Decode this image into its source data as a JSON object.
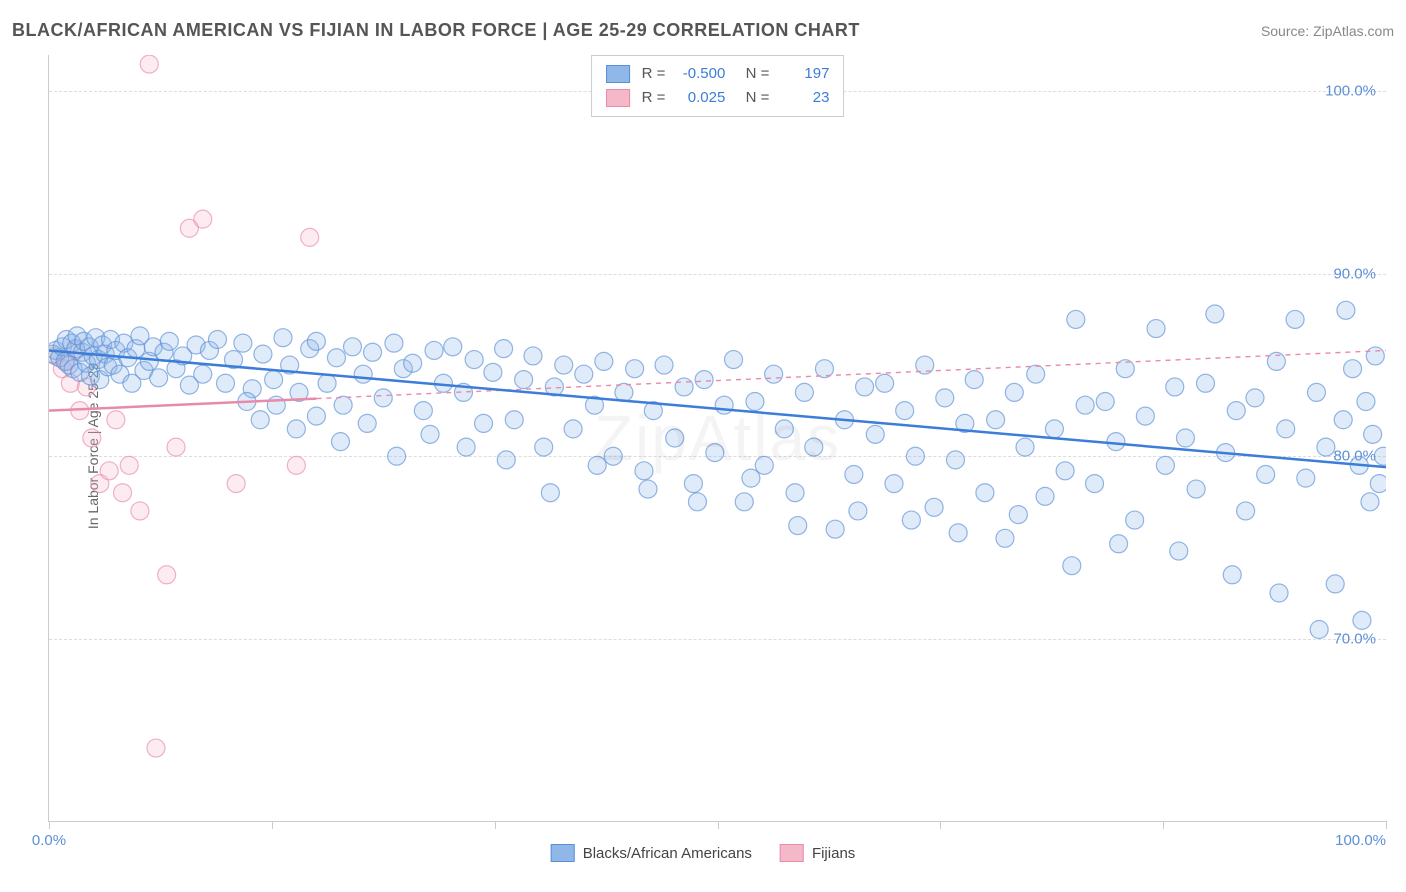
{
  "title": "BLACK/AFRICAN AMERICAN VS FIJIAN IN LABOR FORCE | AGE 25-29 CORRELATION CHART",
  "source": "Source: ZipAtlas.com",
  "watermark": "ZipAtlas",
  "ylabel": "In Labor Force | Age 25-29",
  "chart": {
    "type": "scatter",
    "xlim": [
      0,
      100
    ],
    "ylim": [
      60,
      102
    ],
    "yticks": [
      70,
      80,
      90,
      100
    ],
    "ytick_labels": [
      "70.0%",
      "80.0%",
      "90.0%",
      "100.0%"
    ],
    "xticks": [
      0,
      16.67,
      33.33,
      50,
      66.67,
      83.33,
      100
    ],
    "xtick_labels_shown": {
      "0": "0.0%",
      "100": "100.0%"
    },
    "background_color": "#ffffff",
    "grid_color": "#dddddd",
    "marker_radius": 9,
    "marker_fill_opacity": 0.28,
    "marker_stroke_opacity": 0.65,
    "marker_stroke_width": 1.2,
    "trend_line_width_solid": 2.5,
    "trend_line_width_dash": 1.4,
    "dash_pattern": "5,5"
  },
  "series": {
    "blue": {
      "label": "Blacks/African Americans",
      "color": "#8fb8e8",
      "stroke": "#5b8fd6",
      "line_color": "#3b7dd8",
      "R": "-0.500",
      "N": "197",
      "trend": {
        "x1": 0,
        "y1": 85.8,
        "x2": 100,
        "y2": 79.4,
        "solid_until": 100
      },
      "points": [
        [
          0.3,
          85.6
        ],
        [
          0.5,
          85.8
        ],
        [
          0.8,
          85.4
        ],
        [
          1.0,
          86.0
        ],
        [
          1.2,
          85.2
        ],
        [
          1.3,
          86.4
        ],
        [
          1.5,
          85.0
        ],
        [
          1.7,
          86.2
        ],
        [
          1.8,
          84.8
        ],
        [
          2.0,
          85.9
        ],
        [
          2.1,
          86.6
        ],
        [
          2.3,
          84.6
        ],
        [
          2.5,
          85.7
        ],
        [
          2.6,
          86.3
        ],
        [
          2.8,
          85.1
        ],
        [
          3.0,
          86.0
        ],
        [
          3.1,
          84.4
        ],
        [
          3.3,
          85.5
        ],
        [
          3.5,
          86.5
        ],
        [
          3.7,
          85.3
        ],
        [
          3.8,
          84.2
        ],
        [
          4.0,
          86.1
        ],
        [
          4.2,
          85.6
        ],
        [
          4.4,
          84.9
        ],
        [
          4.6,
          86.4
        ],
        [
          4.8,
          85.0
        ],
        [
          5.0,
          85.8
        ],
        [
          5.3,
          84.5
        ],
        [
          5.6,
          86.2
        ],
        [
          5.9,
          85.4
        ],
        [
          6.2,
          84.0
        ],
        [
          6.5,
          85.9
        ],
        [
          6.8,
          86.6
        ],
        [
          7.1,
          84.7
        ],
        [
          7.5,
          85.2
        ],
        [
          7.8,
          86.0
        ],
        [
          8.2,
          84.3
        ],
        [
          8.6,
          85.7
        ],
        [
          9.0,
          86.3
        ],
        [
          9.5,
          84.8
        ],
        [
          10.0,
          85.5
        ],
        [
          10.5,
          83.9
        ],
        [
          11.0,
          86.1
        ],
        [
          11.5,
          84.5
        ],
        [
          12.0,
          85.8
        ],
        [
          12.6,
          86.4
        ],
        [
          13.2,
          84.0
        ],
        [
          13.8,
          85.3
        ],
        [
          14.5,
          86.2
        ],
        [
          15.2,
          83.7
        ],
        [
          16.0,
          85.6
        ],
        [
          16.8,
          84.2
        ],
        [
          17.5,
          86.5
        ],
        [
          18.0,
          85.0
        ],
        [
          18.7,
          83.5
        ],
        [
          19.5,
          85.9
        ],
        [
          20.0,
          86.3
        ],
        [
          20.8,
          84.0
        ],
        [
          21.5,
          85.4
        ],
        [
          22.0,
          82.8
        ],
        [
          22.7,
          86.0
        ],
        [
          23.5,
          84.5
        ],
        [
          24.2,
          85.7
        ],
        [
          25.0,
          83.2
        ],
        [
          25.8,
          86.2
        ],
        [
          26.5,
          84.8
        ],
        [
          27.2,
          85.1
        ],
        [
          28.0,
          82.5
        ],
        [
          28.8,
          85.8
        ],
        [
          29.5,
          84.0
        ],
        [
          30.2,
          86.0
        ],
        [
          31.0,
          83.5
        ],
        [
          31.8,
          85.3
        ],
        [
          32.5,
          81.8
        ],
        [
          33.2,
          84.6
        ],
        [
          34.0,
          85.9
        ],
        [
          34.8,
          82.0
        ],
        [
          35.5,
          84.2
        ],
        [
          36.2,
          85.5
        ],
        [
          37.0,
          80.5
        ],
        [
          37.8,
          83.8
        ],
        [
          38.5,
          85.0
        ],
        [
          39.2,
          81.5
        ],
        [
          40.0,
          84.5
        ],
        [
          40.8,
          82.8
        ],
        [
          41.5,
          85.2
        ],
        [
          42.2,
          80.0
        ],
        [
          43.0,
          83.5
        ],
        [
          43.8,
          84.8
        ],
        [
          44.5,
          79.2
        ],
        [
          45.2,
          82.5
        ],
        [
          46.0,
          85.0
        ],
        [
          46.8,
          81.0
        ],
        [
          47.5,
          83.8
        ],
        [
          48.2,
          78.5
        ],
        [
          49.0,
          84.2
        ],
        [
          49.8,
          80.2
        ],
        [
          50.5,
          82.8
        ],
        [
          51.2,
          85.3
        ],
        [
          52.0,
          77.5
        ],
        [
          52.8,
          83.0
        ],
        [
          53.5,
          79.5
        ],
        [
          54.2,
          84.5
        ],
        [
          55.0,
          81.5
        ],
        [
          55.8,
          78.0
        ],
        [
          56.5,
          83.5
        ],
        [
          57.2,
          80.5
        ],
        [
          58.0,
          84.8
        ],
        [
          58.8,
          76.0
        ],
        [
          59.5,
          82.0
        ],
        [
          60.2,
          79.0
        ],
        [
          61.0,
          83.8
        ],
        [
          61.8,
          81.2
        ],
        [
          62.5,
          84.0
        ],
        [
          63.2,
          78.5
        ],
        [
          64.0,
          82.5
        ],
        [
          64.8,
          80.0
        ],
        [
          65.5,
          85.0
        ],
        [
          66.2,
          77.2
        ],
        [
          67.0,
          83.2
        ],
        [
          67.8,
          79.8
        ],
        [
          68.5,
          81.8
        ],
        [
          69.2,
          84.2
        ],
        [
          70.0,
          78.0
        ],
        [
          70.8,
          82.0
        ],
        [
          71.5,
          75.5
        ],
        [
          72.2,
          83.5
        ],
        [
          73.0,
          80.5
        ],
        [
          73.8,
          84.5
        ],
        [
          74.5,
          77.8
        ],
        [
          75.2,
          81.5
        ],
        [
          76.0,
          79.2
        ],
        [
          76.8,
          87.5
        ],
        [
          77.5,
          82.8
        ],
        [
          78.2,
          78.5
        ],
        [
          79.0,
          83.0
        ],
        [
          79.8,
          80.8
        ],
        [
          80.5,
          84.8
        ],
        [
          81.2,
          76.5
        ],
        [
          82.0,
          82.2
        ],
        [
          82.8,
          87.0
        ],
        [
          83.5,
          79.5
        ],
        [
          84.2,
          83.8
        ],
        [
          85.0,
          81.0
        ],
        [
          85.8,
          78.2
        ],
        [
          86.5,
          84.0
        ],
        [
          87.2,
          87.8
        ],
        [
          88.0,
          80.2
        ],
        [
          88.8,
          82.5
        ],
        [
          89.5,
          77.0
        ],
        [
          90.2,
          83.2
        ],
        [
          91.0,
          79.0
        ],
        [
          91.8,
          85.2
        ],
        [
          92.5,
          81.5
        ],
        [
          93.2,
          87.5
        ],
        [
          94.0,
          78.8
        ],
        [
          94.8,
          83.5
        ],
        [
          95.5,
          80.5
        ],
        [
          96.2,
          73.0
        ],
        [
          96.8,
          82.0
        ],
        [
          97.0,
          88.0
        ],
        [
          97.5,
          84.8
        ],
        [
          98.0,
          79.5
        ],
        [
          98.2,
          71.0
        ],
        [
          98.5,
          83.0
        ],
        [
          98.8,
          77.5
        ],
        [
          99.0,
          81.2
        ],
        [
          99.2,
          85.5
        ],
        [
          99.5,
          78.5
        ],
        [
          99.8,
          80.0
        ],
        [
          95.0,
          70.5
        ],
        [
          92.0,
          72.5
        ],
        [
          88.5,
          73.5
        ],
        [
          84.5,
          74.8
        ],
        [
          80.0,
          75.2
        ],
        [
          76.5,
          74.0
        ],
        [
          72.5,
          76.8
        ],
        [
          68.0,
          75.8
        ],
        [
          64.5,
          76.5
        ],
        [
          60.5,
          77.0
        ],
        [
          56.0,
          76.2
        ],
        [
          52.5,
          78.8
        ],
        [
          48.5,
          77.5
        ],
        [
          44.8,
          78.2
        ],
        [
          41.0,
          79.5
        ],
        [
          37.5,
          78.0
        ],
        [
          34.2,
          79.8
        ],
        [
          31.2,
          80.5
        ],
        [
          28.5,
          81.2
        ],
        [
          26.0,
          80.0
        ],
        [
          23.8,
          81.8
        ],
        [
          21.8,
          80.8
        ],
        [
          20.0,
          82.2
        ],
        [
          18.5,
          81.5
        ],
        [
          17.0,
          82.8
        ],
        [
          15.8,
          82.0
        ],
        [
          14.8,
          83.0
        ]
      ]
    },
    "pink": {
      "label": "Fijians",
      "color": "#f5b8c8",
      "stroke": "#e88ba8",
      "line_color": "#e88ba8",
      "R": "0.025",
      "N": "23",
      "trend": {
        "x1": 0,
        "y1": 82.5,
        "x2": 100,
        "y2": 85.8,
        "solid_until": 20
      },
      "points": [
        [
          0.5,
          85.5
        ],
        [
          1.0,
          84.8
        ],
        [
          1.3,
          85.2
        ],
        [
          1.6,
          84.0
        ],
        [
          2.0,
          85.8
        ],
        [
          2.3,
          82.5
        ],
        [
          2.8,
          83.8
        ],
        [
          3.2,
          81.0
        ],
        [
          3.8,
          78.5
        ],
        [
          4.5,
          79.2
        ],
        [
          5.0,
          82.0
        ],
        [
          5.5,
          78.0
        ],
        [
          6.0,
          79.5
        ],
        [
          6.8,
          77.0
        ],
        [
          7.5,
          101.5
        ],
        [
          8.0,
          64.0
        ],
        [
          8.8,
          73.5
        ],
        [
          10.5,
          92.5
        ],
        [
          11.5,
          93.0
        ],
        [
          14.0,
          78.5
        ],
        [
          18.5,
          79.5
        ],
        [
          19.5,
          92.0
        ],
        [
          9.5,
          80.5
        ]
      ]
    }
  }
}
